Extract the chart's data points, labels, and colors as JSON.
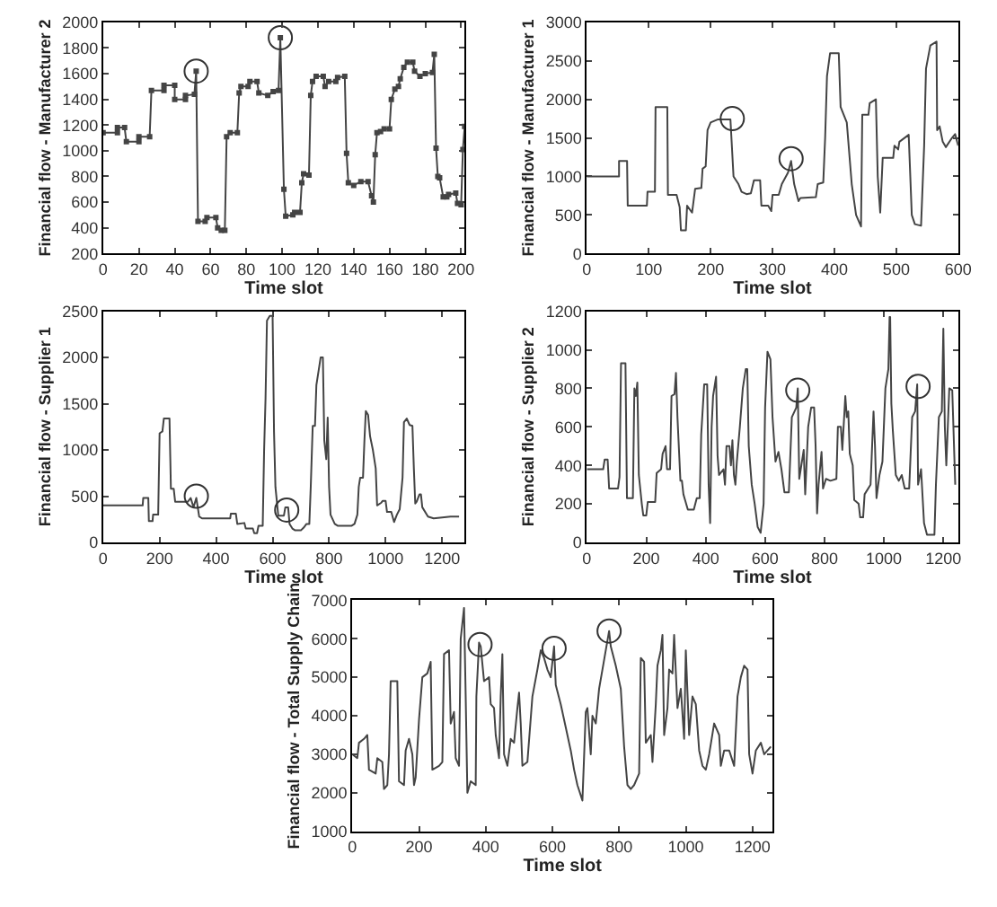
{
  "chart_data": [
    {
      "type": "line",
      "xlabel": "Time slot",
      "ylabel": "Financial flow - Manufacturer 2",
      "xlim": [
        0,
        202
      ],
      "ylim": [
        200,
        2000
      ],
      "xticks": [
        0,
        20,
        40,
        60,
        80,
        100,
        120,
        140,
        160,
        180,
        200
      ],
      "yticks": [
        200,
        400,
        600,
        800,
        1000,
        1200,
        1400,
        1600,
        1800,
        2000
      ],
      "series": [
        {
          "color": "#444444",
          "marker": "square",
          "x": [
            0,
            8,
            8,
            12,
            13,
            20,
            20,
            26,
            27,
            34,
            34,
            40,
            40,
            46,
            46,
            51,
            52,
            53,
            57,
            58,
            63,
            64,
            66,
            68,
            69,
            71,
            75,
            76,
            77,
            81,
            82,
            86,
            87,
            92,
            95,
            98,
            99,
            101,
            102,
            106,
            107,
            110,
            111,
            112,
            115,
            116,
            117,
            119,
            123,
            124,
            126,
            130,
            131,
            135,
            136,
            137,
            140,
            144,
            148,
            150,
            151,
            152,
            153,
            155,
            157,
            160,
            161,
            163,
            165,
            166,
            168,
            170,
            173,
            174,
            177,
            180,
            184,
            185,
            186,
            187,
            188,
            190,
            192,
            193,
            197,
            198,
            200,
            201,
            202
          ],
          "values": [
            1140,
            1140,
            1180,
            1180,
            1070,
            1070,
            1110,
            1110,
            1470,
            1470,
            1510,
            1510,
            1400,
            1400,
            1430,
            1440,
            1620,
            450,
            450,
            480,
            480,
            400,
            380,
            380,
            1110,
            1140,
            1140,
            1450,
            1500,
            1500,
            1540,
            1540,
            1450,
            1430,
            1460,
            1470,
            1880,
            700,
            490,
            500,
            520,
            520,
            750,
            820,
            810,
            1430,
            1540,
            1580,
            1580,
            1500,
            1540,
            1540,
            1570,
            1580,
            980,
            750,
            730,
            760,
            760,
            650,
            600,
            970,
            1140,
            1150,
            1170,
            1170,
            1400,
            1480,
            1500,
            1560,
            1650,
            1690,
            1690,
            1620,
            1580,
            1600,
            1610,
            1750,
            1020,
            800,
            790,
            640,
            640,
            660,
            670,
            590,
            580,
            1010,
            1190
          ]
        },
        {
          "type": "scatter",
          "color": "#333333",
          "marker": "circle",
          "x": [
            52,
            99
          ],
          "values": [
            1620,
            1880
          ]
        }
      ]
    },
    {
      "type": "line",
      "xlabel": "Time slot",
      "ylabel": "Financial flow - Manufacturer 1",
      "xlim": [
        0,
        600
      ],
      "ylim": [
        0,
        3000
      ],
      "xticks": [
        0,
        100,
        200,
        300,
        400,
        500,
        600
      ],
      "yticks": [
        0,
        500,
        1000,
        1500,
        2000,
        2500,
        3000
      ],
      "series": [
        {
          "color": "#444444",
          "marker": "none",
          "x": [
            0,
            52,
            52,
            65,
            66,
            97,
            98,
            110,
            111,
            130,
            131,
            145,
            150,
            152,
            160,
            162,
            170,
            175,
            185,
            187,
            192,
            195,
            200,
            212,
            232,
            237,
            245,
            250,
            258,
            265,
            270,
            280,
            282,
            293,
            298,
            300,
            310,
            315,
            325,
            330,
            335,
            342,
            345,
            370,
            373,
            382,
            385,
            388,
            393,
            407,
            410,
            420,
            428,
            435,
            443,
            445,
            455,
            457,
            467,
            470,
            474,
            478,
            495,
            497,
            503,
            505,
            520,
            525,
            530,
            540,
            545,
            548,
            555,
            565,
            566,
            570,
            575,
            580,
            590,
            595,
            600
          ],
          "values": [
            1000,
            1000,
            1200,
            1200,
            620,
            620,
            800,
            800,
            1900,
            1900,
            760,
            760,
            600,
            300,
            300,
            620,
            530,
            840,
            850,
            1100,
            1130,
            1600,
            1700,
            1740,
            1740,
            1000,
            900,
            800,
            770,
            780,
            950,
            950,
            620,
            620,
            550,
            760,
            760,
            900,
            1050,
            1200,
            900,
            680,
            720,
            730,
            900,
            920,
            1500,
            2300,
            2600,
            2600,
            1900,
            1700,
            900,
            500,
            350,
            1800,
            1800,
            1950,
            2000,
            1000,
            530,
            1240,
            1240,
            1400,
            1350,
            1450,
            1540,
            500,
            380,
            360,
            1400,
            2400,
            2700,
            2750,
            1600,
            1650,
            1450,
            1380,
            1500,
            1550,
            1400
          ]
        },
        {
          "type": "scatter",
          "color": "#333333",
          "marker": "circle",
          "x": [
            235,
            330
          ],
          "values": [
            1750,
            1230
          ]
        }
      ]
    },
    {
      "type": "line",
      "xlabel": "Time slot",
      "ylabel": "Financial flow - Supplier 1",
      "xlim": [
        0,
        1280
      ],
      "ylim": [
        0,
        2500
      ],
      "xticks": [
        0,
        200,
        400,
        600,
        800,
        1000,
        1200
      ],
      "yticks": [
        0,
        500,
        1000,
        1500,
        2000,
        2500
      ],
      "series": [
        {
          "color": "#444444",
          "marker": "none",
          "x": [
            0,
            140,
            142,
            160,
            162,
            175,
            177,
            195,
            200,
            210,
            215,
            235,
            240,
            250,
            255,
            300,
            310,
            320,
            330,
            340,
            350,
            450,
            452,
            470,
            475,
            500,
            505,
            530,
            535,
            545,
            550,
            565,
            570,
            575,
            580,
            590,
            600,
            605,
            610,
            620,
            640,
            645,
            655,
            660,
            670,
            680,
            700,
            710,
            720,
            730,
            735,
            742,
            750,
            755,
            765,
            770,
            778,
            783,
            790,
            795,
            800,
            805,
            820,
            830,
            880,
            890,
            900,
            905,
            910,
            920,
            925,
            930,
            938,
            945,
            955,
            960,
            965,
            970,
            985,
            990,
            1000,
            1005,
            1020,
            1030,
            1040,
            1050,
            1060,
            1065,
            1075,
            1085,
            1095,
            1100,
            1105,
            1110,
            1120,
            1125,
            1130,
            1150,
            1170,
            1200,
            1230,
            1260
          ],
          "values": [
            400,
            400,
            480,
            480,
            230,
            230,
            300,
            300,
            1180,
            1200,
            1340,
            1340,
            580,
            580,
            440,
            440,
            480,
            380,
            480,
            280,
            260,
            260,
            310,
            310,
            200,
            210,
            150,
            150,
            100,
            100,
            180,
            180,
            1000,
            1560,
            2400,
            2450,
            2450,
            1200,
            600,
            290,
            290,
            380,
            380,
            200,
            150,
            130,
            130,
            160,
            200,
            200,
            600,
            1260,
            1260,
            1700,
            1900,
            2000,
            2000,
            1100,
            900,
            1350,
            600,
            300,
            200,
            180,
            180,
            200,
            300,
            600,
            700,
            700,
            1100,
            1420,
            1380,
            1150,
            1000,
            900,
            800,
            400,
            430,
            450,
            450,
            330,
            330,
            220,
            300,
            360,
            700,
            1300,
            1340,
            1270,
            1260,
            800,
            420,
            440,
            520,
            520,
            380,
            280,
            260,
            270,
            280,
            280
          ]
        },
        {
          "type": "scatter",
          "color": "#333333",
          "marker": "circle",
          "x": [
            330,
            650
          ],
          "values": [
            500,
            350
          ]
        }
      ]
    },
    {
      "type": "line",
      "xlabel": "Time slot",
      "ylabel": "Financial flow - Supplier 2",
      "xlim": [
        0,
        1250
      ],
      "ylim": [
        0,
        1200
      ],
      "xticks": [
        0,
        200,
        400,
        600,
        800,
        1000,
        1200
      ],
      "yticks": [
        0,
        200,
        400,
        600,
        800,
        1000,
        1200
      ],
      "series": [
        {
          "color": "#444444",
          "marker": "none",
          "x": [
            0,
            55,
            60,
            70,
            75,
            105,
            110,
            115,
            130,
            135,
            155,
            160,
            165,
            170,
            175,
            185,
            190,
            200,
            205,
            230,
            235,
            250,
            255,
            265,
            270,
            280,
            285,
            295,
            300,
            305,
            315,
            320,
            325,
            340,
            360,
            370,
            380,
            385,
            395,
            405,
            410,
            415,
            420,
            425,
            435,
            440,
            445,
            460,
            465,
            470,
            480,
            485,
            490,
            495,
            500,
            505,
            515,
            525,
            535,
            540,
            545,
            555,
            565,
            575,
            585,
            595,
            600,
            608,
            618,
            625,
            635,
            645,
            655,
            665,
            680,
            690,
            705,
            710,
            715,
            720,
            730,
            735,
            745,
            755,
            765,
            770,
            775,
            780,
            790,
            795,
            805,
            820,
            840,
            845,
            855,
            860,
            870,
            875,
            880,
            885,
            895,
            900,
            915,
            920,
            930,
            935,
            955,
            965,
            970,
            975,
            985,
            995,
            1005,
            1015,
            1019,
            1021,
            1025,
            1030,
            1040,
            1050,
            1060,
            1070,
            1085,
            1095,
            1105,
            1112,
            1115,
            1125,
            1135,
            1145,
            1170,
            1175,
            1185,
            1195,
            1200,
            1205,
            1210,
            1220,
            1230,
            1240
          ],
          "values": [
            380,
            380,
            430,
            430,
            280,
            280,
            340,
            930,
            930,
            230,
            230,
            800,
            760,
            830,
            350,
            200,
            140,
            140,
            210,
            210,
            360,
            380,
            460,
            500,
            380,
            380,
            760,
            770,
            880,
            650,
            320,
            320,
            250,
            170,
            170,
            230,
            230,
            560,
            820,
            820,
            300,
            100,
            600,
            760,
            860,
            450,
            350,
            380,
            300,
            500,
            500,
            400,
            530,
            350,
            300,
            420,
            600,
            800,
            900,
            900,
            500,
            300,
            200,
            80,
            50,
            200,
            700,
            990,
            950,
            650,
            420,
            470,
            380,
            260,
            260,
            650,
            700,
            800,
            330,
            380,
            480,
            250,
            600,
            700,
            700,
            500,
            150,
            300,
            470,
            280,
            330,
            320,
            330,
            600,
            600,
            480,
            760,
            650,
            680,
            460,
            400,
            220,
            200,
            130,
            130,
            250,
            300,
            680,
            500,
            230,
            350,
            420,
            800,
            900,
            1170,
            1170,
            720,
            580,
            350,
            320,
            350,
            280,
            280,
            650,
            680,
            820,
            300,
            380,
            100,
            40,
            40,
            300,
            650,
            680,
            1110,
            600,
            400,
            800,
            790,
            300
          ]
        },
        {
          "type": "scatter",
          "color": "#333333",
          "marker": "circle",
          "x": [
            710,
            1115
          ],
          "values": [
            790,
            810
          ]
        }
      ]
    },
    {
      "type": "line",
      "xlabel": "Time slot",
      "ylabel": "Financial flow - Total Supply Chain",
      "xlim": [
        0,
        1260
      ],
      "ylim": [
        1000,
        7000
      ],
      "xticks": [
        0,
        200,
        400,
        600,
        800,
        1000,
        1200
      ],
      "yticks": [
        1000,
        2000,
        3000,
        4000,
        5000,
        6000,
        7000
      ],
      "series": [
        {
          "color": "#444444",
          "marker": "none",
          "x": [
            0,
            15,
            20,
            35,
            45,
            50,
            70,
            75,
            90,
            95,
            105,
            110,
            115,
            135,
            140,
            155,
            160,
            170,
            180,
            185,
            190,
            200,
            210,
            225,
            235,
            240,
            260,
            270,
            275,
            290,
            295,
            305,
            310,
            320,
            325,
            335,
            340,
            345,
            355,
            370,
            372,
            380,
            385,
            395,
            410,
            415,
            425,
            430,
            440,
            445,
            450,
            455,
            465,
            475,
            485,
            495,
            500,
            505,
            510,
            525,
            540,
            555,
            565,
            575,
            585,
            595,
            605,
            610,
            625,
            640,
            655,
            665,
            675,
            690,
            700,
            705,
            715,
            720,
            730,
            740,
            750,
            770,
            775,
            790,
            805,
            815,
            825,
            835,
            845,
            860,
            865,
            875,
            880,
            895,
            900,
            910,
            915,
            925,
            930,
            935,
            945,
            950,
            960,
            965,
            975,
            985,
            995,
            1000,
            1010,
            1020,
            1030,
            1040,
            1050,
            1060,
            1070,
            1085,
            1095,
            1100,
            1105,
            1115,
            1130,
            1145,
            1155,
            1165,
            1175,
            1185,
            1190,
            1200,
            1210,
            1225,
            1235,
            1255
          ],
          "values": [
            3000,
            2900,
            3300,
            3400,
            3500,
            2600,
            2500,
            2900,
            2800,
            2100,
            2200,
            3000,
            4900,
            4900,
            2300,
            2200,
            3100,
            3400,
            3000,
            2200,
            2400,
            3900,
            5000,
            5100,
            5400,
            2600,
            2700,
            2800,
            5600,
            5700,
            3800,
            4100,
            2900,
            2700,
            6000,
            6800,
            4500,
            2000,
            2300,
            2200,
            4500,
            5900,
            5800,
            4900,
            5000,
            4300,
            4200,
            3500,
            2900,
            4500,
            5600,
            3000,
            2700,
            3400,
            3300,
            4200,
            4600,
            3800,
            2700,
            2800,
            4500,
            5200,
            5700,
            5500,
            5200,
            5000,
            5800,
            4800,
            4300,
            3700,
            3100,
            2600,
            2200,
            1800,
            4100,
            4200,
            3000,
            4000,
            3800,
            4700,
            5200,
            6200,
            5800,
            5300,
            4700,
            3200,
            2200,
            2100,
            2200,
            2500,
            5500,
            5400,
            3300,
            3500,
            2800,
            4300,
            5300,
            5700,
            6100,
            3500,
            4200,
            5200,
            5100,
            6100,
            4200,
            4700,
            3400,
            5700,
            3500,
            4500,
            4300,
            3100,
            2700,
            2600,
            3000,
            3800,
            3600,
            3500,
            2700,
            3100,
            3100,
            2700,
            4500,
            5000,
            5300,
            5200,
            3000,
            2500,
            3100,
            3300,
            3000,
            3200
          ]
        },
        {
          "type": "scatter",
          "color": "#333333",
          "marker": "circle",
          "x": [
            383,
            605,
            770
          ],
          "values": [
            5850,
            5750,
            6200
          ]
        }
      ]
    }
  ]
}
